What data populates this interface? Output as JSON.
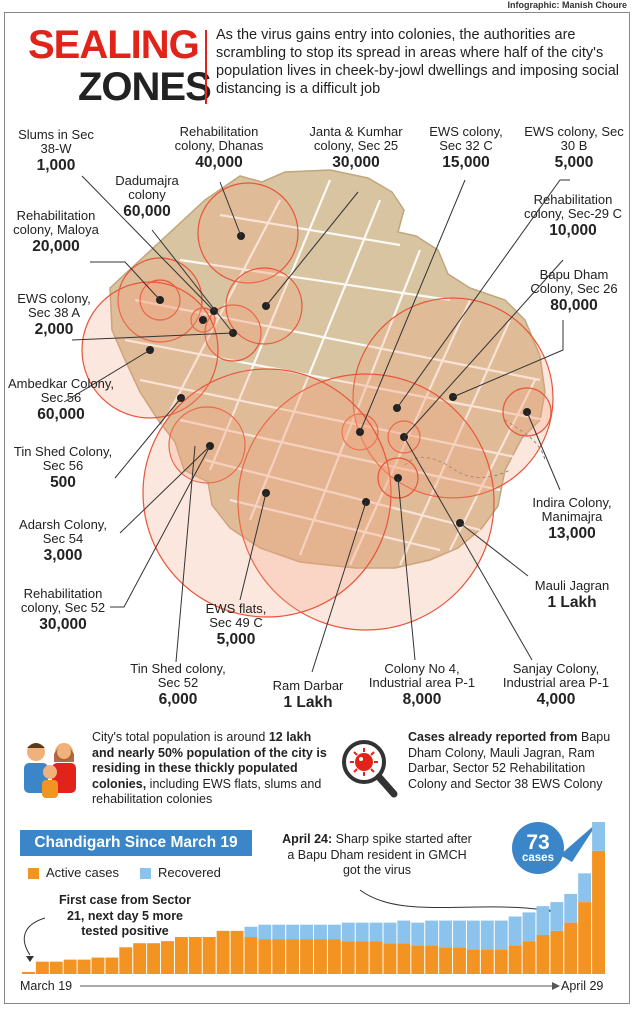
{
  "credit": "Infographic: Manish Choure",
  "title": [
    "SEALING",
    "ZONES"
  ],
  "intro": "As the virus gains entry into colonies, the authorities are scrambling to stop its spread in areas where half of the city's population lives in cheek-by-jowl dwellings and imposing social distancing is a difficult job",
  "colonies": [
    {
      "name": "Slums in Sec 38-W",
      "population": "1,000"
    },
    {
      "name": "Rehabilitation colony, Dhanas",
      "population": "40,000"
    },
    {
      "name": "Janta & Kumhar colony, Sec 25",
      "population": "30,000"
    },
    {
      "name": "EWS colony, Sec 32 C",
      "population": "15,000"
    },
    {
      "name": "EWS colony, Sec 30 B",
      "population": "5,000"
    },
    {
      "name": "Dadumajra colony",
      "population": "60,000"
    },
    {
      "name": "Rehabilitation colony, Maloya",
      "population": "20,000"
    },
    {
      "name": "Rehabilitation colony, Sec-29 C",
      "population": "10,000"
    },
    {
      "name": "Bapu Dham Colony, Sec 26",
      "population": "80,000"
    },
    {
      "name": "EWS colony, Sec 38 A",
      "population": "2,000"
    },
    {
      "name": "Ambedkar Colony, Sec 56",
      "population": "60,000"
    },
    {
      "name": "Tin Shed Colony, Sec 56",
      "population": "500"
    },
    {
      "name": "Adarsh Colony, Sec 54",
      "population": "3,000"
    },
    {
      "name": "Indira Colony, Manimajra",
      "population": "13,000"
    },
    {
      "name": "Rehabilitation colony, Sec 52",
      "population": "30,000"
    },
    {
      "name": "Mauli Jagran",
      "population": "1 Lakh"
    },
    {
      "name": "EWS flats, Sec 49 C",
      "population": "5,000"
    },
    {
      "name": "Tin Shed colony, Sec 52",
      "population": "6,000"
    },
    {
      "name": "Ram Darbar",
      "population": "1 Lakh"
    },
    {
      "name": "Colony No 4, Industrial area P-1",
      "population": "8,000"
    },
    {
      "name": "Sanjay Colony, Industrial area P-1",
      "population": "4,000"
    }
  ],
  "population_note": {
    "lead": "City's total population is around",
    "bold": "12 lakh and nearly 50% population of the city is residing in these thickly populated colonies,",
    "tail": "including EWS flats, slums and rehabilitation colonies"
  },
  "cases_note": {
    "bold": "Cases already reported from",
    "text": "Bapu Dham Colony, Mauli Jagran, Ram Darbar, Sector 52 Rehabilitation Colony and Sector 38 EWS Colony"
  },
  "colors": {
    "active": "#f29322",
    "recovered": "#8cc3ec",
    "title_red": "#e2231a",
    "chart_banner": "#3a86c8",
    "map_fill": "#d8c4a0",
    "circle": "#e8553a"
  },
  "chart_data": {
    "type": "bar",
    "title": "Chandigarh Since March 19",
    "series_names": [
      "Active cases",
      "Recovered"
    ],
    "x_start": "March 19",
    "x_end": "April 29",
    "series": [
      {
        "name": "Active cases",
        "values": [
          1,
          6,
          6,
          7,
          7,
          8,
          8,
          13,
          15,
          15,
          16,
          18,
          18,
          18,
          21,
          21,
          18,
          17,
          17,
          17,
          17,
          17,
          17,
          16,
          16,
          16,
          15,
          15,
          14,
          14,
          13,
          13,
          12,
          12,
          12,
          14,
          16,
          19,
          21,
          25,
          35,
          60
        ]
      },
      {
        "name": "Recovered",
        "values": [
          0,
          0,
          0,
          0,
          0,
          0,
          0,
          0,
          0,
          0,
          0,
          0,
          0,
          0,
          0,
          0,
          5,
          7,
          7,
          7,
          7,
          7,
          7,
          9,
          9,
          9,
          10,
          11,
          11,
          12,
          13,
          13,
          14,
          14,
          14,
          14,
          14,
          14,
          14,
          14,
          14,
          14
        ]
      }
    ],
    "annotations": {
      "first_case": "First case from Sector 21, next day 5 more tested positive",
      "spike_bold": "April 24:",
      "spike_text": "Sharp spike started after a Bapu Dham resident in GMCH got the virus",
      "bubble_value": "73",
      "bubble_unit": "cases"
    }
  }
}
